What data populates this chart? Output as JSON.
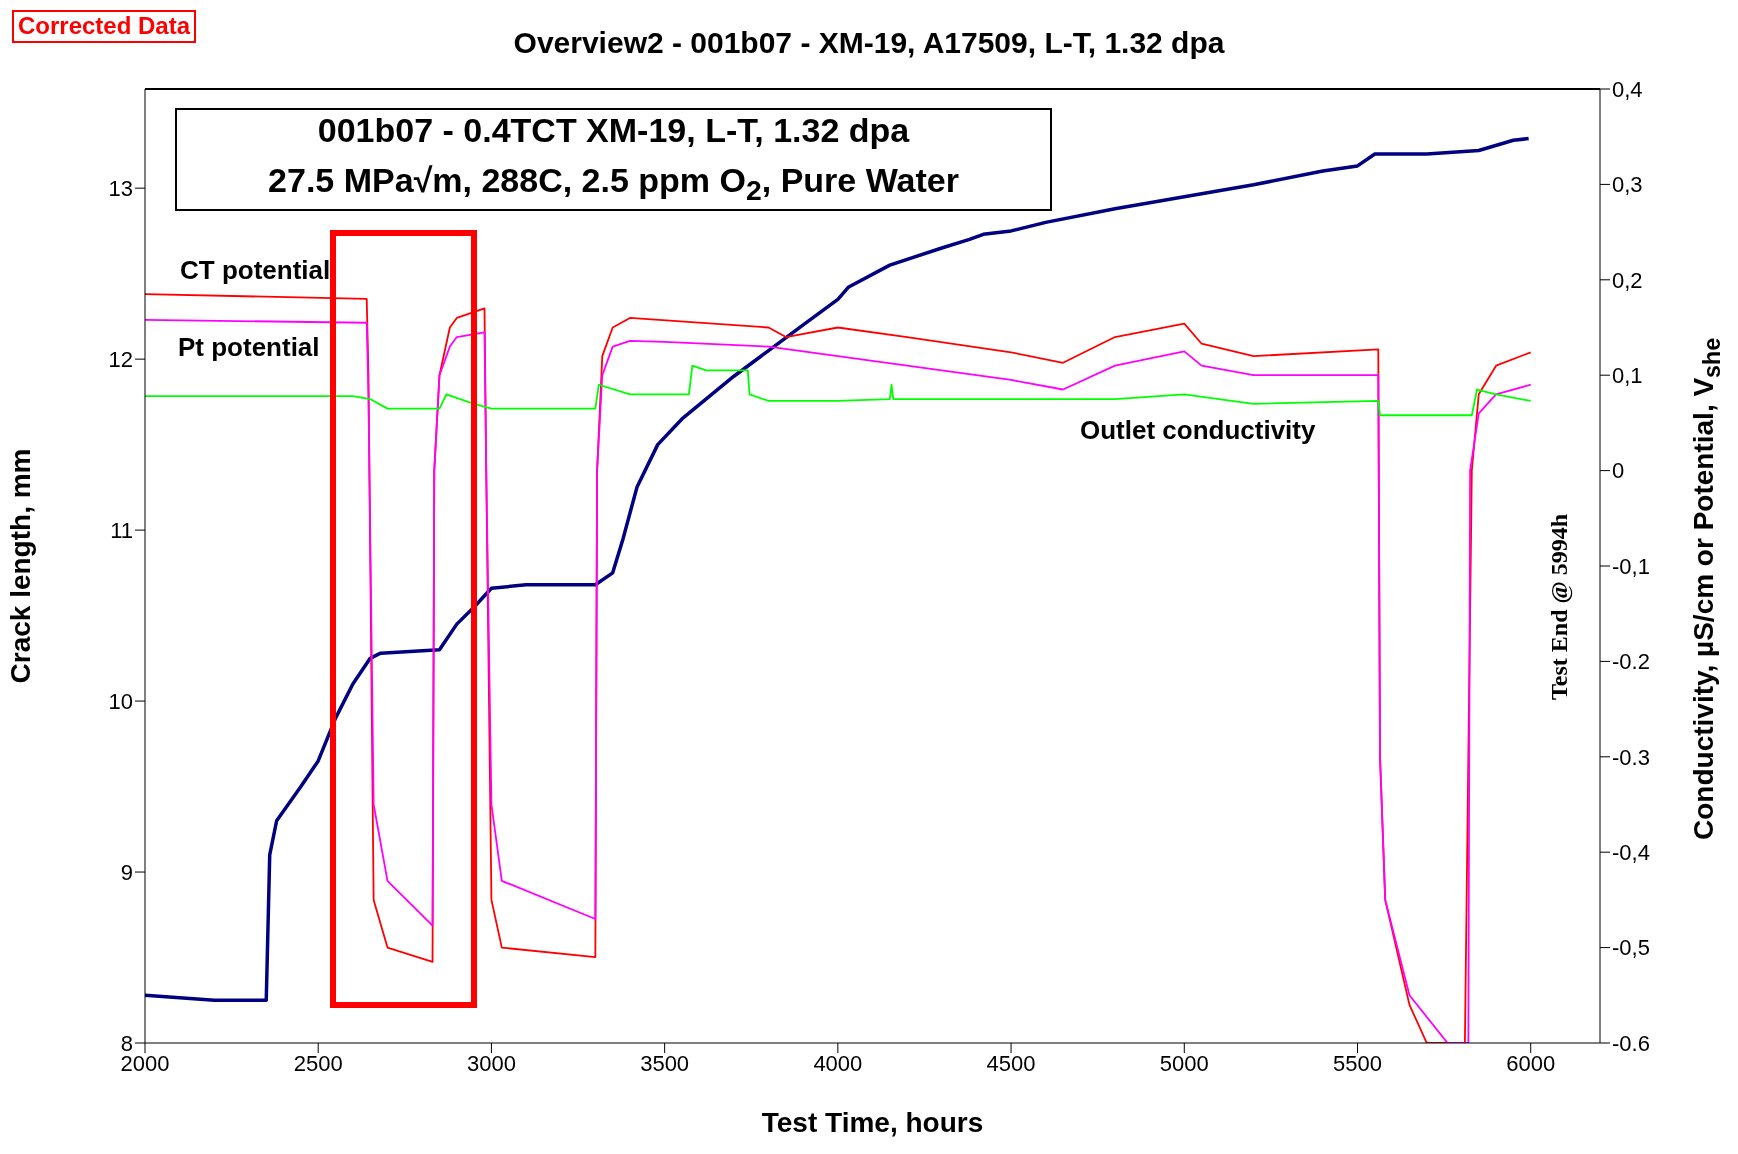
{
  "chart_data": {
    "type": "line",
    "title": "Overview2 - 001b07 - XM-19, A17509, L-T, 1.32 dpa",
    "xlabel": "Test Time, hours",
    "ylabel": "Crack length,  mm",
    "y2label": "Conductivity,  µS/cm or Potential, V$_{she}$",
    "annotations": [
      "Corrected Data",
      "001b07 - 0.4TCT XM-19, L-T, 1.32 dpa",
      "27.5 MPa√m, 288C, 2.5 ppm O$_{2}$, Pure Water",
      "Test End @ 5994h"
    ],
    "xlim": [
      2000,
      6200
    ],
    "xticks": [
      2000,
      2500,
      3000,
      3500,
      4000,
      4500,
      5000,
      5500,
      6000
    ],
    "ylim": [
      8,
      13.58
    ],
    "yticks": [
      8,
      9,
      10,
      11,
      12,
      13
    ],
    "y2lim": [
      -0.6,
      0.4
    ],
    "y2ticks": [
      {
        "value": -0.6,
        "label": "-0.6"
      },
      {
        "value": -0.5,
        "label": "-0,5"
      },
      {
        "value": -0.4,
        "label": "-0,4"
      },
      {
        "value": -0.3,
        "label": "-0.3"
      },
      {
        "value": -0.2,
        "label": "-0.2"
      },
      {
        "value": -0.1,
        "label": "-0,1"
      },
      0,
      {
        "value": 0.1,
        "label": "0,1"
      },
      {
        "value": 0.2,
        "label": "0,2"
      },
      {
        "value": 0.3,
        "label": "0,3"
      },
      {
        "value": 0.4,
        "label": "0,4"
      }
    ],
    "marker": "none",
    "line_style": "solid",
    "series": [
      {
        "color": "#000080",
        "x": [
          2000,
          2200,
          2350,
          2360,
          2380,
          2450,
          2500,
          2550,
          2600,
          2650,
          2680,
          2850,
          2900,
          2950,
          3000,
          3100,
          3300,
          3350,
          3380,
          3420,
          3480,
          3550,
          3700,
          3800,
          3900,
          4000,
          4030,
          4150,
          4300,
          4380,
          4420,
          4500,
          4600,
          4800,
          5000,
          5200,
          5400,
          5500,
          5550,
          5700,
          5850,
          5950,
          5994
        ],
        "values": [
          8.28,
          8.25,
          8.25,
          9.1,
          9.3,
          9.5,
          9.65,
          9.9,
          10.1,
          10.25,
          10.28,
          10.3,
          10.45,
          10.55,
          10.66,
          10.68,
          10.68,
          10.75,
          10.95,
          11.25,
          11.5,
          11.65,
          11.9,
          12.05,
          12.2,
          12.35,
          12.42,
          12.55,
          12.65,
          12.7,
          12.73,
          12.75,
          12.8,
          12.88,
          12.95,
          13.02,
          13.1,
          13.13,
          13.2,
          13.2,
          13.22,
          13.28,
          13.29
        ]
      },
      {
        "name": "CT potential",
        "color": "#ff0000",
        "axis": "y2",
        "x": [
          2000,
          2640,
          2645,
          2660,
          2700,
          2830,
          2835,
          2850,
          2880,
          2900,
          2980,
          2985,
          3000,
          3030,
          3300,
          3305,
          3320,
          3350,
          3400,
          3800,
          3850,
          4000,
          4200,
          4500,
          4650,
          4800,
          5000,
          5050,
          5200,
          5560,
          5565,
          5580,
          5650,
          5700,
          5810,
          5830,
          5850,
          5900,
          6000
        ],
        "values": [
          0.185,
          0.18,
          0.1,
          -0.45,
          -0.5,
          -0.515,
          0.0,
          0.1,
          0.15,
          0.16,
          0.17,
          0.0,
          -0.45,
          -0.5,
          -0.51,
          0.0,
          0.12,
          0.15,
          0.16,
          0.15,
          0.14,
          0.15,
          0.14,
          0.124,
          0.113,
          0.14,
          0.154,
          0.133,
          0.12,
          0.127,
          -0.3,
          -0.45,
          -0.56,
          -0.6,
          -0.6,
          0.0,
          0.08,
          0.11,
          0.124
        ]
      },
      {
        "name": "Pt potential",
        "color": "#ff00ff",
        "axis": "y2",
        "x": [
          2000,
          2640,
          2645,
          2660,
          2700,
          2830,
          2835,
          2850,
          2880,
          2900,
          2980,
          2985,
          3000,
          3030,
          3300,
          3305,
          3320,
          3350,
          3400,
          3500,
          3800,
          3900,
          4000,
          4200,
          4500,
          4650,
          4800,
          5000,
          5050,
          5200,
          5560,
          5565,
          5580,
          5650,
          5760,
          5820,
          5825,
          5850,
          5900,
          6000
        ],
        "values": [
          0.158,
          0.155,
          0.08,
          -0.35,
          -0.43,
          -0.477,
          0.0,
          0.1,
          0.13,
          0.14,
          0.145,
          0.0,
          -0.35,
          -0.43,
          -0.47,
          0.0,
          0.1,
          0.13,
          0.136,
          0.135,
          0.13,
          0.125,
          0.12,
          0.11,
          0.095,
          0.085,
          0.11,
          0.125,
          0.11,
          0.1,
          0.1,
          -0.3,
          -0.45,
          -0.55,
          -0.6,
          -0.6,
          0.0,
          0.06,
          0.08,
          0.09
        ]
      },
      {
        "name": "Outlet conductivity",
        "color": "#00ff00",
        "axis": "y2",
        "x": [
          2000,
          2600,
          2650,
          2700,
          2850,
          2870,
          2950,
          3000,
          3300,
          3310,
          3400,
          3570,
          3580,
          3620,
          3740,
          3745,
          3800,
          4000,
          4150,
          4155,
          4160,
          4500,
          4800,
          5000,
          5200,
          5560,
          5565,
          5830,
          5845,
          5900,
          6000
        ],
        "values": [
          0.078,
          0.078,
          0.075,
          0.065,
          0.065,
          0.08,
          0.07,
          0.065,
          0.065,
          0.09,
          0.08,
          0.08,
          0.11,
          0.105,
          0.105,
          0.08,
          0.073,
          0.073,
          0.075,
          0.09,
          0.075,
          0.075,
          0.075,
          0.08,
          0.07,
          0.073,
          0.058,
          0.058,
          0.085,
          0.08,
          0.073
        ]
      }
    ]
  }
}
